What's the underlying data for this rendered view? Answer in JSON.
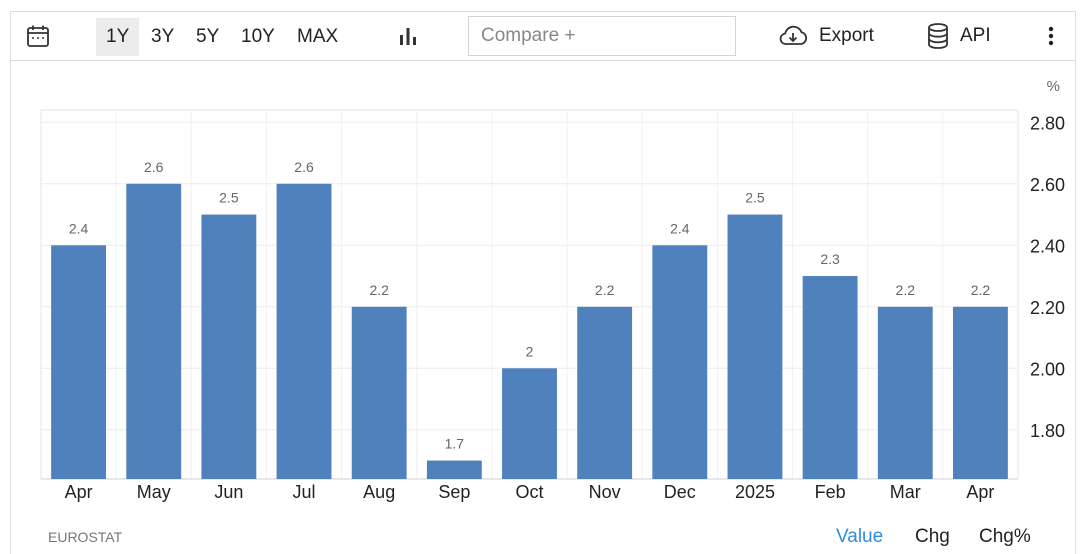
{
  "toolbar": {
    "ranges": [
      "1Y",
      "3Y",
      "5Y",
      "10Y",
      "MAX"
    ],
    "active_range": "1Y",
    "compare_placeholder": "Compare +",
    "export_label": "Export",
    "api_label": "API",
    "icons": [
      "calendar-icon",
      "bar-chart-icon",
      "cloud-download-icon",
      "database-icon",
      "more-vertical-icon"
    ]
  },
  "chart_data": {
    "type": "bar",
    "categories": [
      "Apr",
      "May",
      "Jun",
      "Jul",
      "Aug",
      "Sep",
      "Oct",
      "Nov",
      "Dec",
      "2025",
      "Feb",
      "Mar",
      "Apr"
    ],
    "values": [
      2.4,
      2.6,
      2.5,
      2.6,
      2.2,
      1.7,
      2.0,
      2.2,
      2.4,
      2.5,
      2.3,
      2.2,
      2.2
    ],
    "data_labels": [
      "2.4",
      "2.6",
      "2.5",
      "2.6",
      "2.2",
      "1.7",
      "2",
      "2.2",
      "2.4",
      "2.5",
      "2.3",
      "2.2",
      "2.2"
    ],
    "unit": "%",
    "y_ticks": [
      "2.80",
      "2.60",
      "2.40",
      "2.20",
      "2.00",
      "1.80"
    ],
    "ylim": [
      1.64,
      2.84
    ],
    "y_axis_side": "right",
    "grid": true,
    "bar_color": "#4f81bd"
  },
  "footer": {
    "source": "EUROSTAT",
    "tabs": [
      "Value",
      "Chg",
      "Chg%"
    ],
    "active_tab": "Value"
  }
}
